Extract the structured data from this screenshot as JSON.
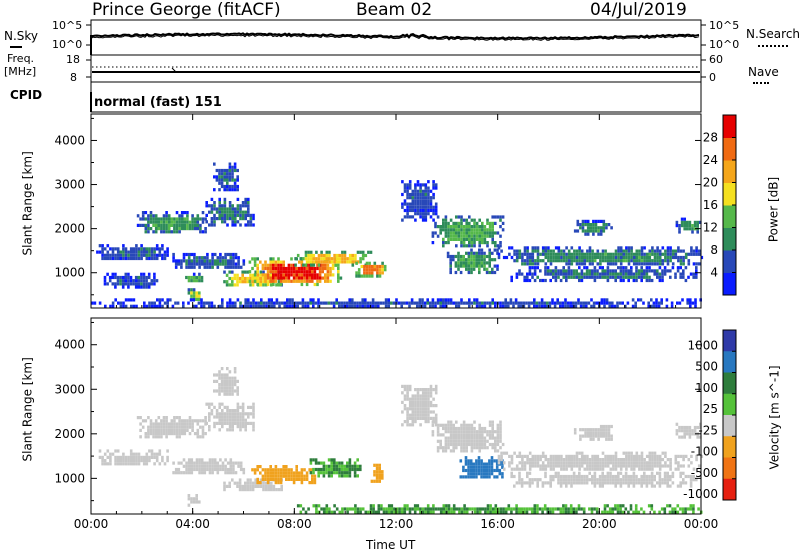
{
  "header": {
    "station": "Prince George (fitACF)",
    "beam": "Beam 02",
    "date": "04/Jul/2019"
  },
  "noise_panel": {
    "left_label": "N.Sky",
    "left_ticks": [
      "10^5",
      "10^0"
    ],
    "right_ticks": [
      "10^5",
      "10^0"
    ],
    "right_label": "N.Search"
  },
  "freq_panel": {
    "left_label_1": "Freq.",
    "left_label_2": "[MHz]",
    "left_ticks": [
      "18",
      "8"
    ],
    "right_ticks": [
      "60",
      "0"
    ],
    "right_label": "Nave"
  },
  "cpid_panel": {
    "label": "CPID",
    "mode_text": "normal (fast) 151"
  },
  "colors": {
    "power_scale": [
      "#0a1cff",
      "#2848b8",
      "#2e8c5a",
      "#55b84a",
      "#f5e020",
      "#f5a61a",
      "#f06a12",
      "#e60000"
    ],
    "velocity_scale": [
      "#2f3aa8",
      "#2878c0",
      "#2e7d3c",
      "#55c23a",
      "#c8c8c8",
      "#f0a21e",
      "#f07414",
      "#e62010"
    ]
  },
  "chart_data": [
    {
      "type": "heatmap",
      "title": "",
      "xlabel": "",
      "ylabel": "Slant Range [km]",
      "x_ticks": [
        "00:00",
        "04:00",
        "08:00",
        "12:00",
        "16:00",
        "20:00",
        "00:00"
      ],
      "y_ticks": [
        "1000",
        "2000",
        "3000",
        "4000"
      ],
      "ylim": [
        200,
        4600
      ],
      "colorbar_label": "Power [dB]",
      "colorbar_ticks": [
        "4",
        "8",
        "12",
        "16",
        "20",
        "24",
        "28"
      ],
      "colorbar_range": [
        0,
        32
      ],
      "regions": [
        {
          "t0": 0.2,
          "t1": 3.0,
          "r0": 1300,
          "r1": 1650,
          "v": 7
        },
        {
          "t0": 0.5,
          "t1": 2.6,
          "r0": 700,
          "r1": 1000,
          "v": 6
        },
        {
          "t0": 1.8,
          "t1": 4.5,
          "r0": 1900,
          "r1": 2400,
          "v": 11
        },
        {
          "t0": 4.5,
          "t1": 6.4,
          "r0": 2100,
          "r1": 2700,
          "v": 9
        },
        {
          "t0": 4.8,
          "t1": 5.8,
          "r0": 2900,
          "r1": 3500,
          "v": 7
        },
        {
          "t0": 3.2,
          "t1": 6.0,
          "r0": 1100,
          "r1": 1450,
          "v": 8
        },
        {
          "t0": 3.6,
          "t1": 4.4,
          "r0": 800,
          "r1": 1000,
          "v": 12
        },
        {
          "t0": 5.2,
          "t1": 7.5,
          "r0": 700,
          "r1": 1050,
          "v": 20
        },
        {
          "t0": 6.2,
          "t1": 9.8,
          "r0": 750,
          "r1": 1350,
          "v": 29
        },
        {
          "t0": 8.0,
          "t1": 11.0,
          "r0": 1200,
          "r1": 1500,
          "v": 21
        },
        {
          "t0": 10.4,
          "t1": 11.6,
          "r0": 950,
          "r1": 1250,
          "v": 26
        },
        {
          "t0": 3.8,
          "t1": 4.3,
          "r0": 400,
          "r1": 650,
          "v": 17
        },
        {
          "t0": 12.2,
          "t1": 13.6,
          "r0": 2200,
          "r1": 3100,
          "v": 6
        },
        {
          "t0": 13.4,
          "t1": 16.2,
          "r0": 1600,
          "r1": 2300,
          "v": 13
        },
        {
          "t0": 14.0,
          "t1": 16.0,
          "r0": 1000,
          "r1": 1550,
          "v": 12
        },
        {
          "t0": 16.0,
          "t1": 24.0,
          "r0": 1200,
          "r1": 1600,
          "v": 10
        },
        {
          "t0": 16.5,
          "t1": 23.8,
          "r0": 850,
          "r1": 1150,
          "v": 8
        },
        {
          "t0": 19.0,
          "t1": 20.5,
          "r0": 1900,
          "r1": 2200,
          "v": 10
        },
        {
          "t0": 23.0,
          "t1": 24.0,
          "r0": 1950,
          "r1": 2250,
          "v": 11
        },
        {
          "t0": 0.0,
          "t1": 24.0,
          "r0": 250,
          "r1": 420,
          "v": 6
        }
      ]
    },
    {
      "type": "heatmap",
      "title": "",
      "xlabel": "Time UT",
      "ylabel": "Slant Range [km]",
      "x_ticks": [
        "00:00",
        "04:00",
        "08:00",
        "12:00",
        "16:00",
        "20:00",
        "00:00"
      ],
      "y_ticks": [
        "1000",
        "2000",
        "3000",
        "4000"
      ],
      "ylim": [
        200,
        4600
      ],
      "colorbar_label": "Velocity [m s^-1]",
      "colorbar_ticks": [
        "1000",
        "500",
        "100",
        "25",
        "-25",
        "-100",
        "-500",
        "-1000"
      ],
      "regions": [
        {
          "t0": 0.2,
          "t1": 3.0,
          "r0": 1300,
          "r1": 1650,
          "v": 0
        },
        {
          "t0": 1.8,
          "t1": 4.5,
          "r0": 1900,
          "r1": 2400,
          "v": 0
        },
        {
          "t0": 4.5,
          "t1": 6.4,
          "r0": 2100,
          "r1": 2700,
          "v": 0
        },
        {
          "t0": 4.8,
          "t1": 5.8,
          "r0": 2900,
          "r1": 3500,
          "v": 0
        },
        {
          "t0": 3.2,
          "t1": 6.0,
          "r0": 1100,
          "r1": 1450,
          "v": 0
        },
        {
          "t0": 5.2,
          "t1": 7.5,
          "r0": 750,
          "r1": 1000,
          "v": 0
        },
        {
          "t0": 6.2,
          "t1": 8.8,
          "r0": 900,
          "r1": 1300,
          "v": -80
        },
        {
          "t0": 8.6,
          "t1": 10.6,
          "r0": 1050,
          "r1": 1450,
          "v": 60
        },
        {
          "t0": 11.0,
          "t1": 11.5,
          "r0": 950,
          "r1": 1400,
          "v": -80
        },
        {
          "t0": 3.8,
          "t1": 4.3,
          "r0": 400,
          "r1": 650,
          "v": 0
        },
        {
          "t0": 12.2,
          "t1": 13.6,
          "r0": 2200,
          "r1": 3100,
          "v": 0
        },
        {
          "t0": 13.4,
          "t1": 16.2,
          "r0": 1600,
          "r1": 2300,
          "v": 0
        },
        {
          "t0": 14.5,
          "t1": 16.2,
          "r0": 1000,
          "r1": 1500,
          "v": 300
        },
        {
          "t0": 16.0,
          "t1": 24.0,
          "r0": 1200,
          "r1": 1600,
          "v": 0
        },
        {
          "t0": 16.5,
          "t1": 23.8,
          "r0": 850,
          "r1": 1150,
          "v": 0
        },
        {
          "t0": 19.0,
          "t1": 20.5,
          "r0": 1900,
          "r1": 2200,
          "v": 0
        },
        {
          "t0": 23.0,
          "t1": 24.0,
          "r0": 1950,
          "r1": 2250,
          "v": 0
        },
        {
          "t0": 8.0,
          "t1": 24.0,
          "r0": 250,
          "r1": 420,
          "v": 60
        }
      ]
    }
  ]
}
